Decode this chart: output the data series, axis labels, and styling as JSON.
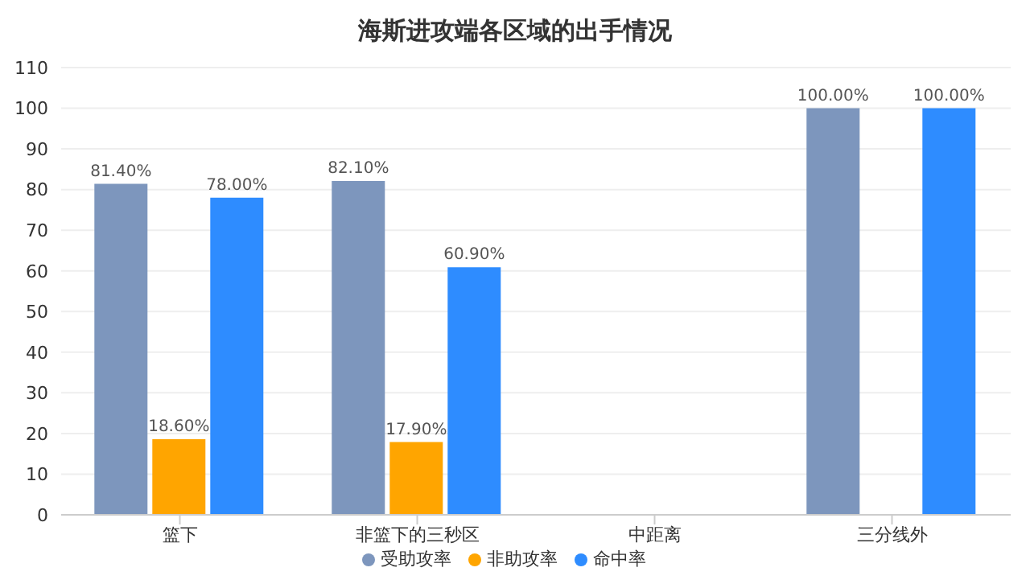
{
  "chart_data": {
    "type": "bar",
    "title": "海斯进攻端各区域的出手情况",
    "categories": [
      "篮下",
      "非篮下的三秒区",
      "中距离",
      "三分线外"
    ],
    "series": [
      {
        "name": "受助攻率",
        "color": "#7d96bd",
        "values": [
          81.4,
          82.1,
          null,
          100
        ],
        "value_labels": [
          "81.40%",
          "82.10%",
          null,
          "100.00%"
        ]
      },
      {
        "name": "非助攻率",
        "color": "#ffa500",
        "values": [
          18.6,
          17.9,
          null,
          null
        ],
        "value_labels": [
          "18.60%",
          "17.90%",
          null,
          null
        ]
      },
      {
        "name": "命中率",
        "color": "#2e8cff",
        "values": [
          78,
          60.9,
          null,
          100
        ],
        "value_labels": [
          "78.00%",
          "60.90%",
          null,
          "100.00%"
        ]
      }
    ],
    "ylim": [
      0,
      110
    ],
    "yticks": [
      0,
      10,
      20,
      30,
      40,
      50,
      60,
      70,
      80,
      90,
      100,
      110
    ],
    "grid": "y",
    "legend": "bottom"
  }
}
